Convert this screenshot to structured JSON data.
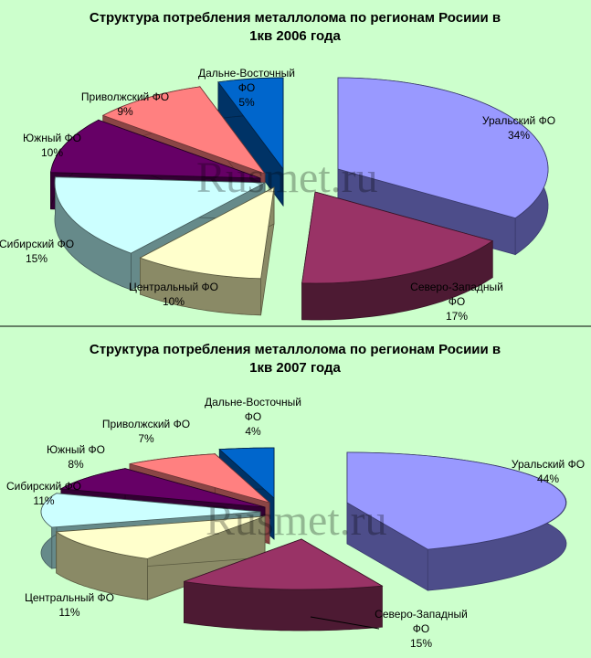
{
  "watermark": "Rusmet.ru",
  "chart_data": [
    {
      "type": "pie",
      "title": [
        "Структура потребления металлолома по регионам Росиии в",
        "1кв 2006 года"
      ],
      "slices": [
        {
          "key": "ural",
          "label": [
            "Уральский ФО"
          ],
          "pct": "34%",
          "value": 34,
          "color": "#9999ff",
          "side": "#4d4d8a",
          "edge": "#3a3a6e"
        },
        {
          "key": "nw",
          "label": [
            "Северо-Западный",
            "ФО"
          ],
          "pct": "17%",
          "value": 17,
          "color": "#993366",
          "side": "#4d1a33",
          "edge": "#3a1326"
        },
        {
          "key": "center",
          "label": [
            "Центральный ФО"
          ],
          "pct": "10%",
          "value": 10,
          "color": "#ffffcc",
          "side": "#8a8a66",
          "edge": "#5a5a40"
        },
        {
          "key": "sib",
          "label": [
            "Сибирский ФО"
          ],
          "pct": "15%",
          "value": 15,
          "color": "#ccffff",
          "side": "#668a8a",
          "edge": "#445c5c"
        },
        {
          "key": "south",
          "label": [
            "Южный ФО"
          ],
          "pct": "10%",
          "value": 10,
          "color": "#660066",
          "side": "#330033",
          "edge": "#220022"
        },
        {
          "key": "volga",
          "label": [
            "Приволжский ФО"
          ],
          "pct": "9%",
          "value": 9,
          "color": "#ff8080",
          "side": "#8a4545",
          "edge": "#6e3434"
        },
        {
          "key": "fe",
          "label": [
            "Дальне-Восточный",
            "ФО"
          ],
          "pct": "5%",
          "value": 5,
          "color": "#0066cc",
          "side": "#003366",
          "edge": "#002244"
        }
      ]
    },
    {
      "type": "pie",
      "title": [
        "Структура потребления металлолома по регионам Росиии в",
        "1кв 2007 года"
      ],
      "slices": [
        {
          "key": "ural",
          "label": [
            "Уральский ФО"
          ],
          "pct": "44%",
          "value": 44,
          "color": "#9999ff",
          "side": "#4d4d8a",
          "edge": "#3a3a6e"
        },
        {
          "key": "nw",
          "label": [
            "Северо-Западный",
            "ФО"
          ],
          "pct": "15%",
          "value": 15,
          "color": "#993366",
          "side": "#4d1a33",
          "edge": "#3a1326"
        },
        {
          "key": "center",
          "label": [
            "Центральный ФО"
          ],
          "pct": "11%",
          "value": 11,
          "color": "#ffffcc",
          "side": "#8a8a66",
          "edge": "#5a5a40"
        },
        {
          "key": "sib",
          "label": [
            "Сибирский ФО"
          ],
          "pct": "11%",
          "value": 11,
          "color": "#ccffff",
          "side": "#668a8a",
          "edge": "#445c5c"
        },
        {
          "key": "south",
          "label": [
            "Южный ФО"
          ],
          "pct": "8%",
          "value": 8,
          "color": "#660066",
          "side": "#330033",
          "edge": "#220022"
        },
        {
          "key": "volga",
          "label": [
            "Приволжский ФО"
          ],
          "pct": "7%",
          "value": 7,
          "color": "#ff8080",
          "side": "#8a4545",
          "edge": "#6e3434"
        },
        {
          "key": "fe",
          "label": [
            "Дальне-Восточный",
            "ФО"
          ],
          "pct": "4%",
          "value": 4,
          "color": "#0066cc",
          "side": "#003366",
          "edge": "#002244"
        }
      ]
    }
  ]
}
